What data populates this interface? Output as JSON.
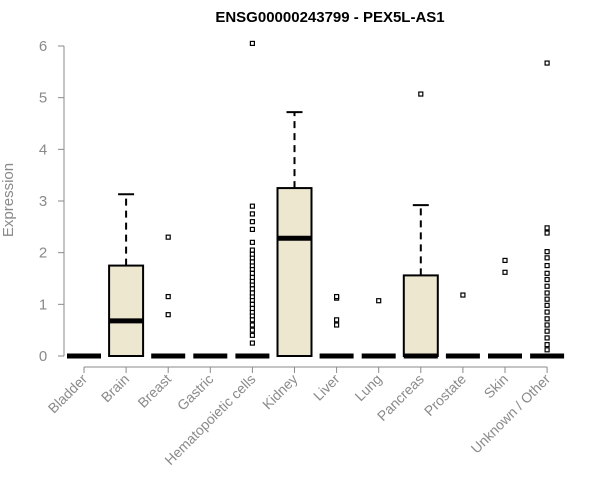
{
  "chart_data": {
    "type": "boxplot",
    "title": "ENSG00000243799 - PEX5L-AS1",
    "xlabel": "",
    "ylabel": "Expression",
    "ylim": [
      0,
      6
    ],
    "yticks": [
      0,
      1,
      2,
      3,
      4,
      5,
      6
    ],
    "box_fill": "#ede7cf",
    "categories": [
      "Bladder",
      "Brain",
      "Breast",
      "Gastric",
      "Hematopoietic cells",
      "Kidney",
      "Liver",
      "Lung",
      "Pancreas",
      "Prostate",
      "Skin",
      "Unknown / Other"
    ],
    "boxes": [
      {
        "q1": 0,
        "median": 0,
        "q3": 0,
        "whisker_low": 0,
        "whisker_high": 0,
        "outliers": []
      },
      {
        "q1": 0,
        "median": 0.68,
        "q3": 1.75,
        "whisker_low": 0,
        "whisker_high": 3.13,
        "outliers": []
      },
      {
        "q1": 0,
        "median": 0,
        "q3": 0,
        "whisker_low": 0,
        "whisker_high": 0,
        "outliers": [
          0.8,
          1.15,
          2.3
        ]
      },
      {
        "q1": 0,
        "median": 0,
        "q3": 0,
        "whisker_low": 0,
        "whisker_high": 0,
        "outliers": []
      },
      {
        "q1": 0,
        "median": 0,
        "q3": 0,
        "whisker_low": 0,
        "whisker_high": 0,
        "outliers": [
          0.25,
          0.4,
          0.5,
          0.6,
          0.7,
          0.78,
          0.85,
          0.92,
          1.0,
          1.08,
          1.15,
          1.22,
          1.3,
          1.38,
          1.45,
          1.52,
          1.6,
          1.68,
          1.75,
          1.82,
          1.9,
          1.97,
          2.05,
          2.2,
          2.45,
          2.6,
          2.75,
          2.9,
          6.05
        ]
      },
      {
        "q1": 0,
        "median": 2.28,
        "q3": 3.25,
        "whisker_low": 0,
        "whisker_high": 4.72,
        "outliers": []
      },
      {
        "q1": 0,
        "median": 0,
        "q3": 0,
        "whisker_low": 0,
        "whisker_high": 0,
        "outliers": [
          0.6,
          0.7,
          1.12,
          1.15
        ]
      },
      {
        "q1": 0,
        "median": 0,
        "q3": 0,
        "whisker_low": 0,
        "whisker_high": 0,
        "outliers": [
          1.07
        ]
      },
      {
        "q1": 0,
        "median": 0,
        "q3": 1.56,
        "whisker_low": 0,
        "whisker_high": 2.92,
        "outliers": [
          5.07
        ]
      },
      {
        "q1": 0,
        "median": 0,
        "q3": 0,
        "whisker_low": 0,
        "whisker_high": 0,
        "outliers": [
          1.18
        ]
      },
      {
        "q1": 0,
        "median": 0,
        "q3": 0,
        "whisker_low": 0,
        "whisker_high": 0,
        "outliers": [
          1.62,
          1.85
        ]
      },
      {
        "q1": 0,
        "median": 0,
        "q3": 0,
        "whisker_low": 0,
        "whisker_high": 0,
        "outliers": [
          0.12,
          0.22,
          0.35,
          0.48,
          0.6,
          0.72,
          0.85,
          0.98,
          1.1,
          1.22,
          1.35,
          1.48,
          1.6,
          1.75,
          1.9,
          2.02,
          2.38,
          2.48,
          5.67
        ]
      }
    ]
  }
}
